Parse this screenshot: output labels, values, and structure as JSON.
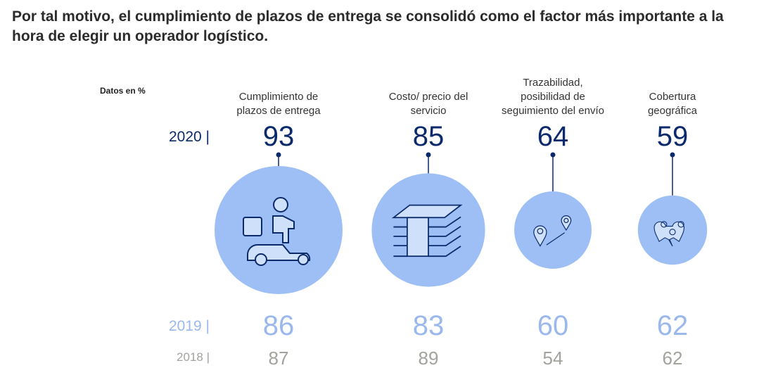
{
  "title": "Por tal motivo, el cumplimiento de plazos de entrega se consolidó como el factor más importante a la hora de elegir un operador logístico.",
  "chart_data": {
    "type": "bubble",
    "unit_note": "Datos en %",
    "years": [
      "2020 |",
      "2019 |",
      "2018 |"
    ],
    "categories": [
      {
        "label": [
          "Cumplimiento de",
          "plazos de entrega"
        ],
        "icon": "delivery-scooter-icon",
        "values": {
          "2020": 93,
          "2019": 86,
          "2018": 87
        }
      },
      {
        "label": [
          "Costo/ precio del",
          "servicio"
        ],
        "icon": "money-stack-icon",
        "values": {
          "2020": 85,
          "2019": 83,
          "2018": 89
        }
      },
      {
        "label": [
          "Trazabilidad,",
          "posibilidad de",
          "seguimiento del envío"
        ],
        "icon": "route-pins-icon",
        "values": {
          "2020": 64,
          "2019": 60,
          "2018": 54
        }
      },
      {
        "label": [
          "Cobertura",
          "geográfica"
        ],
        "icon": "multi-location-icon",
        "values": {
          "2020": 59,
          "2019": 62,
          "2018": 62
        }
      }
    ],
    "bubble_size_series": "2020"
  },
  "colors": {
    "y2020": "#0b2a6b",
    "y2019": "#9ab8ec",
    "y2018": "#a3a29c",
    "bubble": "#9dbff5",
    "icon_fill": "#cfe0fb"
  }
}
